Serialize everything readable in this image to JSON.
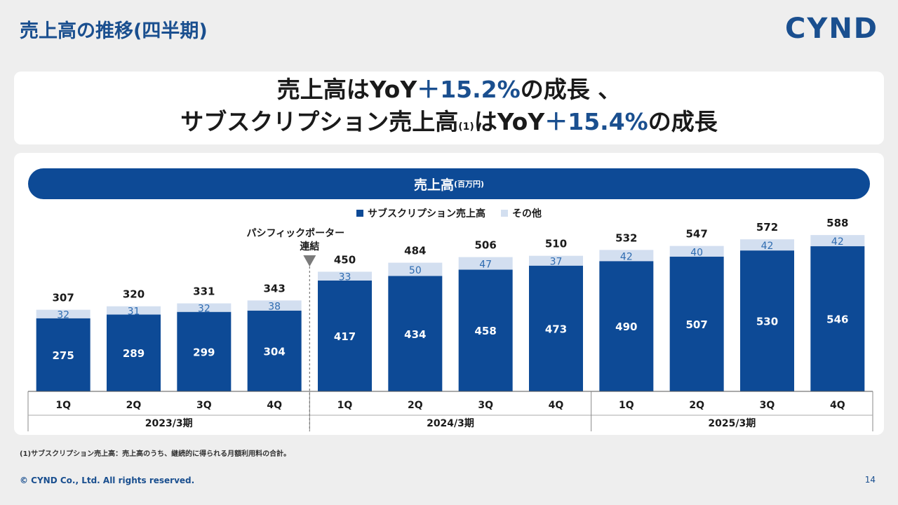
{
  "page": {
    "title": "売上高の推移(四半期)",
    "logo": "CYND",
    "headline": {
      "line1_a": "売上高はYoY",
      "line1_hl": "＋15.2%",
      "line1_b": "の成長 、",
      "line2_a": "サブスクリプション売上高",
      "line2_note": "(1)",
      "line2_b": "はYoY",
      "line2_hl": "＋15.4%",
      "line2_c": "の成長"
    },
    "footnote": "(1)サブスクリプション売上高：売上高のうち、継続的に得られる月額利用料の合計。",
    "copyright": "© CYND Co., Ltd. All rights reserved.",
    "page_number": "14"
  },
  "chart_data": {
    "type": "bar",
    "stacked": true,
    "title": "売上高",
    "title_unit": "(百万円)",
    "legend_position": "top",
    "categories": [
      "1Q",
      "2Q",
      "3Q",
      "4Q",
      "1Q",
      "2Q",
      "3Q",
      "4Q",
      "1Q",
      "2Q",
      "3Q",
      "4Q"
    ],
    "groups": [
      {
        "label": "2023/3期",
        "start": 0,
        "end": 3
      },
      {
        "label": "2024/3期",
        "start": 4,
        "end": 7
      },
      {
        "label": "2025/3期",
        "start": 8,
        "end": 11
      }
    ],
    "series": [
      {
        "name": "サブスクリプション売上高",
        "color": "#0d4a96",
        "label_color": "#ffffff",
        "values": [
          275,
          289,
          299,
          304,
          417,
          434,
          458,
          473,
          490,
          507,
          530,
          546
        ]
      },
      {
        "name": "その他",
        "color": "#d3dff0",
        "label_color": "#2e6bb0",
        "values": [
          32,
          31,
          32,
          38,
          33,
          50,
          47,
          37,
          42,
          40,
          42,
          42
        ]
      }
    ],
    "totals": [
      307,
      320,
      331,
      343,
      450,
      484,
      506,
      510,
      532,
      547,
      572,
      588
    ],
    "ylim": [
      0,
      620
    ],
    "grid": false,
    "annotation": {
      "text_line1": "パシフィックポーター",
      "text_line2": "連結",
      "after_index": 3
    }
  }
}
